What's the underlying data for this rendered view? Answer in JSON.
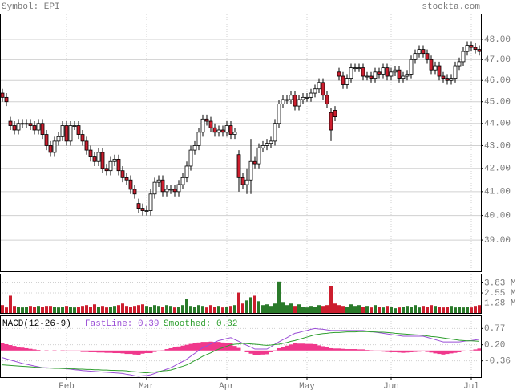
{
  "chart_data": [
    {
      "type": "candlestick",
      "title": "Symbol: EPI",
      "source": "stockta.com",
      "log": true,
      "grid": true,
      "ylim": [
        37.76,
        49.25
      ],
      "yticks": [
        {
          "value": 39,
          "label": "39.00"
        },
        {
          "value": 40,
          "label": "40.00"
        },
        {
          "value": 41,
          "label": "41.00"
        },
        {
          "value": 42,
          "label": "42.00"
        },
        {
          "value": 43,
          "label": "43.00"
        },
        {
          "value": 44,
          "label": "44.00"
        },
        {
          "value": 45,
          "label": "45.00"
        },
        {
          "value": 46,
          "label": "46.00"
        },
        {
          "value": 47,
          "label": "47.00"
        },
        {
          "value": 48,
          "label": "48.00"
        }
      ],
      "up_color": "#ffffff",
      "down_color": "#cc1e2e",
      "open": [
        45.4,
        45.2,
        44.1,
        43.9,
        43.7,
        44.0,
        44.0,
        44.0,
        43.9,
        43.7,
        44.0,
        43.5,
        43.0,
        42.7,
        43.2,
        43.4,
        43.9,
        43.2,
        43.9,
        43.9,
        43.5,
        43.2,
        42.8,
        42.5,
        42.3,
        42.7,
        42.0,
        41.9,
        42.3,
        42.4,
        41.9,
        41.6,
        41.5,
        41.1,
        40.5,
        40.3,
        40.2,
        40.2,
        40.9,
        41.4,
        41.5,
        41.0,
        41.1,
        41.1,
        41.0,
        41.3,
        41.6,
        42.1,
        42.8,
        43.0,
        43.6,
        44.2,
        44.1,
        43.8,
        43.6,
        43.7,
        43.6,
        43.9,
        43.5,
        42.6,
        41.6,
        41.3,
        41.5,
        42.3,
        42.2,
        42.9,
        43.0,
        43.1,
        43.2,
        44.0,
        44.9,
        45.1,
        45.1,
        45.3,
        44.8,
        45.1,
        45.2,
        45.2,
        45.4,
        45.6,
        45.9,
        45.3,
        44.5,
        44.6,
        46.4,
        46.2,
        45.8,
        46.1,
        46.6,
        46.6,
        46.6,
        46.2,
        46.2,
        46.1,
        46.4,
        46.3,
        46.6,
        46.2,
        46.4,
        46.5,
        46.1,
        46.2,
        46.3,
        47.0,
        47.3,
        47.5,
        47.3,
        47.0,
        46.5,
        46.7,
        46.2,
        46.1,
        46.0,
        46.1,
        46.7,
        46.9,
        47.4,
        47.7,
        47.6,
        47.5
      ],
      "high": [
        45.6,
        45.4,
        44.3,
        44.1,
        44.2,
        44.2,
        44.2,
        44.2,
        44.1,
        44.2,
        44.2,
        43.7,
        43.2,
        43.4,
        43.6,
        44.1,
        44.1,
        44.1,
        44.1,
        44.1,
        43.7,
        43.4,
        43.0,
        42.7,
        42.9,
        42.9,
        42.2,
        42.5,
        42.6,
        42.6,
        42.1,
        41.8,
        41.7,
        41.3,
        40.7,
        40.5,
        40.4,
        41.1,
        41.6,
        41.7,
        41.7,
        41.3,
        41.3,
        41.3,
        41.5,
        41.8,
        42.3,
        43.0,
        43.2,
        43.8,
        44.4,
        44.4,
        44.3,
        44.0,
        43.9,
        43.9,
        44.1,
        44.1,
        43.8,
        42.8,
        41.8,
        42.0,
        43.3,
        42.5,
        43.1,
        43.2,
        43.3,
        43.4,
        44.2,
        45.1,
        45.3,
        45.3,
        45.5,
        45.5,
        45.3,
        45.4,
        45.4,
        45.6,
        45.8,
        46.1,
        46.1,
        45.5,
        44.7,
        44.8,
        46.6,
        46.4,
        46.3,
        46.8,
        46.8,
        46.8,
        46.8,
        46.4,
        46.4,
        46.6,
        46.6,
        46.8,
        46.8,
        46.6,
        46.7,
        46.7,
        46.4,
        46.5,
        47.2,
        47.5,
        47.7,
        47.7,
        47.5,
        47.2,
        46.9,
        46.9,
        46.4,
        46.3,
        46.3,
        46.9,
        47.1,
        47.6,
        47.9,
        47.9,
        47.8,
        47.7
      ],
      "low": [
        45.0,
        44.8,
        43.7,
        43.5,
        43.5,
        43.8,
        43.8,
        43.7,
        43.5,
        43.5,
        43.3,
        42.8,
        42.5,
        42.5,
        43.0,
        43.2,
        43.0,
        43.0,
        43.7,
        43.3,
        43.0,
        42.6,
        42.3,
        42.1,
        42.1,
        41.8,
        41.7,
        41.7,
        42.1,
        41.7,
        41.4,
        41.3,
        40.9,
        40.7,
        40.1,
        40.0,
        40.0,
        40.0,
        40.7,
        41.2,
        40.8,
        40.8,
        40.9,
        40.8,
        40.8,
        41.1,
        41.4,
        41.9,
        42.6,
        42.8,
        43.4,
        43.9,
        43.6,
        43.4,
        43.4,
        43.4,
        43.4,
        43.3,
        43.3,
        41.0,
        41.1,
        40.9,
        40.9,
        42.0,
        42.0,
        42.7,
        42.8,
        42.9,
        43.0,
        43.8,
        44.7,
        44.9,
        44.9,
        44.6,
        44.6,
        44.9,
        45.0,
        45.0,
        45.2,
        45.4,
        45.1,
        44.7,
        43.2,
        44.1,
        46.0,
        45.6,
        45.6,
        45.9,
        46.4,
        46.4,
        46.0,
        46.0,
        45.9,
        45.9,
        46.1,
        46.1,
        46.0,
        46.0,
        46.2,
        45.9,
        45.9,
        46.0,
        46.1,
        46.8,
        47.1,
        47.1,
        46.8,
        46.3,
        46.3,
        46.0,
        45.9,
        45.8,
        45.8,
        45.9,
        46.5,
        46.7,
        47.2,
        47.4,
        47.3,
        47.2
      ],
      "close": [
        45.2,
        45.0,
        43.9,
        43.7,
        44.0,
        44.0,
        44.0,
        43.9,
        43.7,
        44.0,
        43.5,
        43.0,
        42.7,
        43.2,
        43.4,
        43.9,
        43.2,
        43.9,
        43.9,
        43.5,
        43.2,
        42.8,
        42.5,
        42.3,
        42.7,
        42.0,
        41.9,
        42.3,
        42.4,
        41.9,
        41.6,
        41.5,
        41.1,
        40.9,
        40.3,
        40.2,
        40.2,
        40.9,
        41.4,
        41.5,
        41.0,
        41.1,
        41.1,
        41.0,
        41.3,
        41.6,
        42.1,
        42.8,
        43.0,
        43.6,
        44.2,
        44.1,
        43.8,
        43.6,
        43.7,
        43.6,
        43.9,
        43.5,
        43.6,
        41.6,
        41.3,
        41.5,
        42.3,
        42.2,
        42.9,
        43.0,
        43.1,
        43.2,
        44.0,
        44.9,
        45.1,
        45.1,
        45.3,
        44.8,
        45.1,
        45.2,
        45.2,
        45.4,
        45.6,
        45.9,
        45.3,
        44.9,
        43.7,
        44.3,
        46.2,
        45.8,
        46.1,
        46.6,
        46.6,
        46.6,
        46.2,
        46.2,
        46.1,
        46.4,
        46.3,
        46.6,
        46.2,
        46.4,
        46.5,
        46.1,
        46.2,
        46.3,
        47.0,
        47.3,
        47.5,
        47.3,
        47.0,
        46.5,
        46.7,
        46.2,
        46.1,
        46.0,
        46.1,
        46.7,
        46.9,
        47.4,
        47.7,
        47.6,
        47.5,
        47.4
      ]
    },
    {
      "type": "bar",
      "ylim": [
        0,
        4.9
      ],
      "yticks": [
        {
          "value": 1.28,
          "label": "1.28 M"
        },
        {
          "value": 2.55,
          "label": "2.55 M"
        },
        {
          "value": 3.83,
          "label": "3.83 M"
        }
      ],
      "up_color": "#2a7a2a",
      "down_color": "#cc1e2e",
      "values": [
        1.0,
        0.7,
        2.2,
        0.9,
        0.8,
        0.7,
        0.8,
        0.9,
        0.8,
        0.9,
        0.8,
        0.9,
        0.9,
        0.8,
        0.7,
        0.8,
        0.9,
        0.8,
        0.7,
        0.8,
        0.9,
        1.0,
        0.8,
        1.1,
        0.8,
        0.9,
        0.7,
        0.8,
        0.9,
        1.0,
        1.2,
        0.9,
        0.8,
        0.9,
        1.0,
        1.1,
        0.9,
        0.8,
        1.0,
        0.9,
        0.8,
        1.0,
        0.9,
        0.7,
        0.8,
        1.0,
        1.8,
        0.9,
        0.8,
        1.0,
        0.9,
        0.7,
        1.0,
        0.8,
        0.9,
        0.7,
        0.8,
        0.9,
        1.0,
        2.6,
        1.2,
        1.6,
        2.0,
        2.2,
        1.5,
        1.0,
        1.1,
        0.9,
        1.2,
        4.0,
        1.4,
        1.0,
        1.2,
        0.9,
        1.1,
        0.8,
        0.7,
        0.9,
        0.8,
        1.0,
        0.9,
        1.0,
        3.4,
        1.2,
        1.0,
        0.9,
        0.8,
        1.1,
        0.9,
        1.0,
        0.8,
        0.9,
        0.7,
        1.0,
        0.8,
        0.7,
        0.9,
        0.8,
        0.6,
        0.7,
        0.8,
        0.9,
        0.8,
        1.0,
        0.7,
        0.9,
        0.8,
        1.0,
        0.9,
        0.8,
        0.7,
        0.8,
        0.9,
        0.7,
        0.8,
        0.7,
        0.8,
        0.7,
        0.9,
        1.0
      ]
    },
    {
      "type": "line",
      "title": "MACD(12-26-9)",
      "ylim": [
        -0.93,
        1.2
      ],
      "yticks": [
        -0.36,
        {
          "value": 0.2,
          "label": "0.20"
        },
        0.77
      ],
      "categories": [
        null,
        null,
        null,
        null,
        null,
        null,
        null,
        null,
        null,
        null,
        null,
        null,
        null,
        null,
        null,
        null,
        "Feb",
        null,
        null,
        null,
        null,
        null,
        null,
        null,
        null,
        null,
        null,
        null,
        null,
        null,
        null,
        null,
        null,
        null,
        null,
        null,
        "Mar",
        null,
        null,
        null,
        null,
        null,
        null,
        null,
        null,
        null,
        null,
        null,
        null,
        null,
        null,
        null,
        null,
        null,
        null,
        null,
        "Apr",
        null,
        null,
        null,
        null,
        null,
        null,
        null,
        null,
        null,
        null,
        null,
        null,
        null,
        null,
        null,
        null,
        null,
        null,
        null,
        "May",
        null,
        null,
        null,
        null,
        null,
        null,
        null,
        null,
        null,
        null,
        null,
        null,
        null,
        null,
        null,
        null,
        null,
        null,
        null,
        null,
        "Jun",
        null,
        null,
        null,
        null,
        null,
        null,
        null,
        null,
        null,
        null,
        null,
        null,
        null,
        null,
        null,
        null,
        null,
        null,
        null,
        "Jul",
        null,
        null
      ],
      "series": [
        {
          "name": "FastLine: 0.39",
          "color": "#9b4fd6",
          "values": [
            -0.25,
            -0.29,
            -0.33,
            -0.37,
            -0.41,
            -0.45,
            -0.48,
            -0.51,
            -0.54,
            -0.57,
            -0.6,
            -0.6,
            -0.61,
            -0.61,
            -0.62,
            -0.62,
            -0.64,
            -0.65,
            -0.67,
            -0.68,
            -0.7,
            -0.71,
            -0.72,
            -0.73,
            -0.74,
            -0.75,
            -0.76,
            -0.77,
            -0.78,
            -0.79,
            -0.8,
            -0.83,
            -0.85,
            -0.88,
            -0.9,
            -0.88,
            -0.87,
            -0.85,
            -0.8,
            -0.75,
            -0.7,
            -0.65,
            -0.6,
            -0.53,
            -0.45,
            -0.38,
            -0.3,
            -0.2,
            -0.1,
            0.0,
            0.1,
            0.16,
            0.23,
            0.29,
            0.35,
            0.38,
            0.42,
            0.45,
            0.38,
            0.32,
            0.25,
            0.18,
            0.12,
            0.05,
            0.05,
            0.05,
            0.05,
            0.13,
            0.22,
            0.3,
            0.38,
            0.45,
            0.53,
            0.6,
            0.63,
            0.67,
            0.7,
            0.74,
            0.77,
            0.75,
            0.74,
            0.72,
            0.7,
            0.7,
            0.7,
            0.7,
            0.7,
            0.7,
            0.7,
            0.7,
            0.7,
            0.68,
            0.66,
            0.64,
            0.62,
            0.6,
            0.58,
            0.56,
            0.54,
            0.52,
            0.5,
            0.5,
            0.5,
            0.5,
            0.5,
            0.5,
            0.46,
            0.42,
            0.38,
            0.34,
            0.3,
            0.3,
            0.3,
            0.3,
            0.3,
            0.32,
            0.34,
            0.35,
            0.37,
            0.39
          ]
        },
        {
          "name": "Smoothed: 0.32",
          "color": "#2e9e2e",
          "values": [
            -0.5,
            -0.51,
            -0.52,
            -0.53,
            -0.54,
            -0.55,
            -0.56,
            -0.57,
            -0.58,
            -0.59,
            -0.6,
            -0.61,
            -0.61,
            -0.62,
            -0.62,
            -0.63,
            -0.63,
            -0.64,
            -0.64,
            -0.65,
            -0.65,
            -0.66,
            -0.66,
            -0.67,
            -0.67,
            -0.68,
            -0.68,
            -0.69,
            -0.69,
            -0.7,
            -0.7,
            -0.71,
            -0.73,
            -0.74,
            -0.75,
            -0.77,
            -0.78,
            -0.76,
            -0.75,
            -0.73,
            -0.71,
            -0.7,
            -0.68,
            -0.64,
            -0.59,
            -0.55,
            -0.5,
            -0.43,
            -0.35,
            -0.28,
            -0.2,
            -0.14,
            -0.08,
            -0.01,
            0.05,
            0.1,
            0.15,
            0.2,
            0.22,
            0.23,
            0.25,
            0.24,
            0.23,
            0.22,
            0.21,
            0.19,
            0.18,
            0.19,
            0.21,
            0.22,
            0.25,
            0.28,
            0.32,
            0.35,
            0.39,
            0.43,
            0.47,
            0.51,
            0.55,
            0.57,
            0.59,
            0.6,
            0.62,
            0.63,
            0.63,
            0.64,
            0.65,
            0.65,
            0.65,
            0.66,
            0.66,
            0.66,
            0.65,
            0.65,
            0.64,
            0.64,
            0.63,
            0.62,
            0.6,
            0.59,
            0.58,
            0.57,
            0.56,
            0.55,
            0.54,
            0.53,
            0.51,
            0.49,
            0.48,
            0.46,
            0.44,
            0.42,
            0.4,
            0.38,
            0.36,
            0.35,
            0.34,
            0.34,
            0.33,
            0.32
          ]
        }
      ],
      "histogram": {
        "color": "#f0388c",
        "values": [
          0.25,
          0.22,
          0.19,
          0.16,
          0.13,
          0.1,
          0.08,
          0.06,
          0.04,
          0.02,
          0.0,
          0.01,
          0.0,
          0.01,
          0.0,
          0.01,
          -0.01,
          -0.01,
          -0.03,
          -0.03,
          -0.05,
          -0.05,
          -0.06,
          -0.06,
          -0.07,
          -0.07,
          -0.08,
          -0.08,
          -0.09,
          -0.09,
          -0.1,
          -0.12,
          -0.12,
          -0.14,
          -0.15,
          -0.11,
          -0.09,
          -0.09,
          -0.05,
          -0.02,
          0.01,
          0.05,
          0.08,
          0.11,
          0.14,
          0.17,
          0.2,
          0.23,
          0.25,
          0.28,
          0.3,
          0.3,
          0.31,
          0.3,
          0.3,
          0.28,
          0.27,
          0.25,
          0.16,
          0.09,
          0.0,
          -0.06,
          -0.11,
          -0.17,
          -0.16,
          -0.14,
          -0.13,
          -0.06,
          0.01,
          0.08,
          0.13,
          0.17,
          0.21,
          0.25,
          0.24,
          0.24,
          0.23,
          0.23,
          0.22,
          0.18,
          0.15,
          0.12,
          0.08,
          0.07,
          0.07,
          0.06,
          0.05,
          0.05,
          0.05,
          0.04,
          0.04,
          0.02,
          0.01,
          -0.01,
          -0.02,
          -0.04,
          -0.05,
          -0.06,
          -0.06,
          -0.07,
          -0.08,
          -0.07,
          -0.06,
          -0.05,
          -0.04,
          -0.03,
          -0.05,
          -0.07,
          -0.1,
          -0.12,
          -0.14,
          -0.12,
          -0.1,
          -0.08,
          -0.06,
          -0.03,
          0.0,
          0.01,
          0.04,
          0.07
        ]
      }
    }
  ]
}
